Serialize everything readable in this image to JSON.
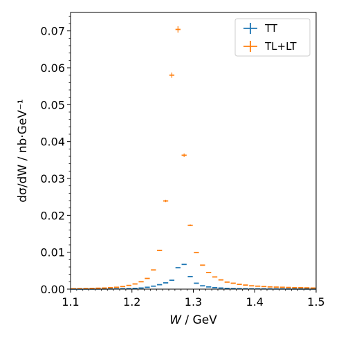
{
  "chart_data": {
    "type": "scatter",
    "xlabel_var": "W",
    "xlabel_unit": " / GeV",
    "ylabel_var": "dσ/dW",
    "ylabel_unit": " / nb·GeV⁻¹",
    "xlim": [
      1.1,
      1.5
    ],
    "ylim": [
      0,
      0.075
    ],
    "x_ticks": [
      "1.1",
      "1.2",
      "1.3",
      "1.4",
      "1.5"
    ],
    "y_ticks": [
      "0.00",
      "0.01",
      "0.02",
      "0.03",
      "0.04",
      "0.05",
      "0.06",
      "0.07"
    ],
    "grid": false,
    "legend_position": "top-right",
    "bin_width": 0.01,
    "series": [
      {
        "name": "TT",
        "color": "#1f77b4",
        "x": [
          1.105,
          1.115,
          1.125,
          1.135,
          1.145,
          1.155,
          1.165,
          1.175,
          1.185,
          1.195,
          1.205,
          1.215,
          1.225,
          1.235,
          1.245,
          1.255,
          1.265,
          1.275,
          1.285,
          1.295,
          1.305,
          1.315,
          1.325,
          1.335,
          1.345,
          1.355,
          1.365,
          1.375,
          1.385,
          1.395,
          1.405,
          1.415,
          1.425,
          1.435,
          1.445,
          1.455,
          1.465,
          1.475,
          1.485,
          1.495
        ],
        "y": [
          1e-05,
          1e-05,
          2e-05,
          2e-05,
          3e-05,
          4e-05,
          5e-05,
          7e-05,
          0.0001,
          0.00014,
          0.0002,
          0.0003,
          0.0005,
          0.0008,
          0.0012,
          0.0017,
          0.0024,
          0.0058,
          0.0067,
          0.0034,
          0.0016,
          0.0009,
          0.0006,
          0.0004,
          0.0003,
          0.0002,
          0.00015,
          0.00012,
          0.0001,
          8e-05,
          7e-05,
          6e-05,
          5e-05,
          4e-05,
          4e-05,
          3e-05,
          3e-05,
          2e-05,
          2e-05,
          2e-05
        ]
      },
      {
        "name": "TL+LT",
        "color": "#ff7f0e",
        "x": [
          1.105,
          1.115,
          1.125,
          1.135,
          1.145,
          1.155,
          1.165,
          1.175,
          1.185,
          1.195,
          1.205,
          1.215,
          1.225,
          1.235,
          1.245,
          1.255,
          1.265,
          1.275,
          1.285,
          1.295,
          1.305,
          1.315,
          1.325,
          1.335,
          1.345,
          1.355,
          1.365,
          1.375,
          1.385,
          1.395,
          1.405,
          1.415,
          1.425,
          1.435,
          1.445,
          1.455,
          1.465,
          1.475,
          1.485,
          1.495
        ],
        "y": [
          0.0001,
          0.00012,
          0.00015,
          0.0002,
          0.00025,
          0.0003,
          0.0004,
          0.0005,
          0.0007,
          0.001,
          0.0014,
          0.002,
          0.0029,
          0.0052,
          0.0105,
          0.0239,
          0.058,
          0.0704,
          0.0363,
          0.0173,
          0.0099,
          0.0065,
          0.0045,
          0.0033,
          0.0025,
          0.0019,
          0.0016,
          0.0013,
          0.0011,
          0.0009,
          0.0008,
          0.0007,
          0.0006,
          0.00055,
          0.0005,
          0.00045,
          0.0004,
          0.0004,
          0.00035,
          0.0003
        ]
      }
    ]
  }
}
